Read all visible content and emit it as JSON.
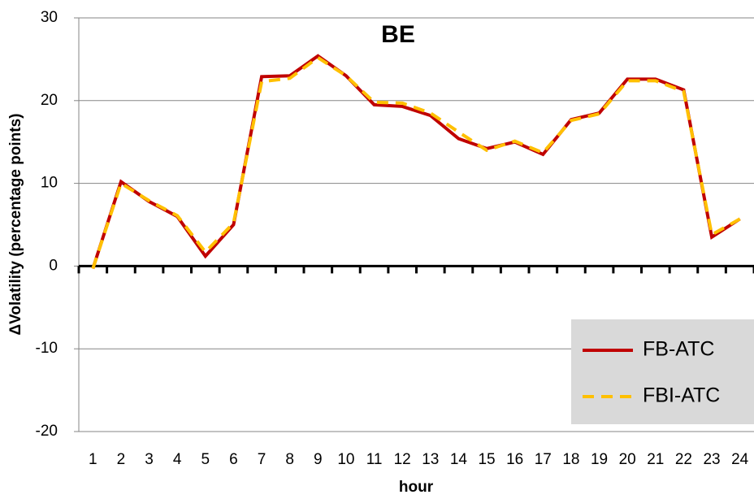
{
  "chart_data": {
    "type": "line",
    "title": "BE",
    "x_label": "hour",
    "y_label": "ΔVolatility  (percentage points)",
    "categories": [
      "1",
      "2",
      "3",
      "4",
      "5",
      "6",
      "7",
      "8",
      "9",
      "10",
      "11",
      "12",
      "13",
      "14",
      "15",
      "16",
      "17",
      "18",
      "19",
      "20",
      "21",
      "22",
      "23",
      "24"
    ],
    "series": [
      {
        "name": "FB-ATC",
        "color": "#c00000",
        "dash": false,
        "values": [
          -0.3,
          10.2,
          7.8,
          6.0,
          1.2,
          5.0,
          22.9,
          23.0,
          25.4,
          23.0,
          19.5,
          19.3,
          18.2,
          15.4,
          14.2,
          15.0,
          13.5,
          17.7,
          18.5,
          22.6,
          22.6,
          21.3,
          3.5,
          5.7
        ]
      },
      {
        "name": "FBI-ATC",
        "color": "#ffc000",
        "dash": true,
        "values": [
          -0.3,
          10.0,
          7.9,
          6.1,
          1.7,
          5.2,
          22.3,
          22.7,
          25.2,
          23.0,
          19.8,
          19.7,
          18.5,
          16.2,
          14.0,
          15.1,
          13.7,
          17.6,
          18.4,
          22.4,
          22.4,
          21.1,
          3.8,
          5.7
        ]
      }
    ],
    "ylim": [
      -20,
      30
    ],
    "yticks": [
      -20,
      -10,
      0,
      10,
      20,
      30
    ],
    "grid": true,
    "legend": "lower right"
  }
}
